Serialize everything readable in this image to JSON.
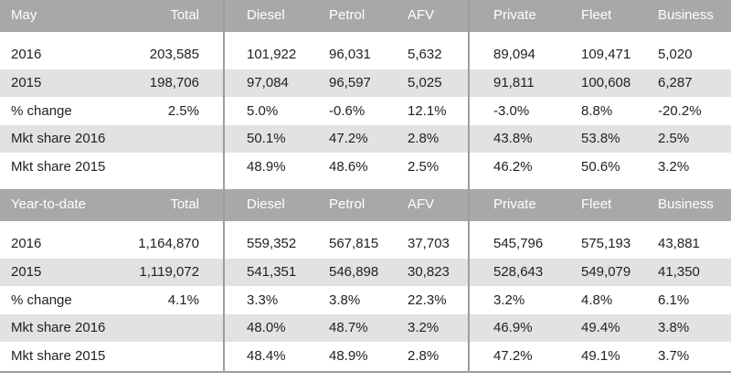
{
  "sections": [
    {
      "header": [
        "May",
        "Total",
        "Diesel",
        "Petrol",
        "AFV",
        "Private",
        "Fleet",
        "Business"
      ],
      "rows": [
        [
          "2016",
          "203,585",
          "101,922",
          "96,031",
          "5,632",
          "89,094",
          "109,471",
          "5,020"
        ],
        [
          "2015",
          "198,706",
          "97,084",
          "96,597",
          "5,025",
          "91,811",
          "100,608",
          "6,287"
        ],
        [
          "% change",
          "2.5%",
          "5.0%",
          "-0.6%",
          "12.1%",
          "-3.0%",
          "8.8%",
          "-20.2%"
        ],
        [
          "Mkt share 2016",
          null,
          "50.1%",
          "47.2%",
          "2.8%",
          "43.8%",
          "53.8%",
          "2.5%"
        ],
        [
          "Mkt share 2015",
          null,
          "48.9%",
          "48.6%",
          "2.5%",
          "46.2%",
          "50.6%",
          "3.2%"
        ]
      ]
    },
    {
      "header": [
        "Year-to-date",
        "Total",
        "Diesel",
        "Petrol",
        "AFV",
        "Private",
        "Fleet",
        "Business"
      ],
      "rows": [
        [
          "2016",
          "1,164,870",
          "559,352",
          "567,815",
          "37,703",
          "545,796",
          "575,193",
          "43,881"
        ],
        [
          "2015",
          "1,119,072",
          "541,351",
          "546,898",
          "30,823",
          "528,643",
          "549,079",
          "41,350"
        ],
        [
          "% change",
          "4.1%",
          "3.3%",
          "3.8%",
          "22.3%",
          "3.2%",
          "4.8%",
          "6.1%"
        ],
        [
          "Mkt share 2016",
          null,
          "48.0%",
          "48.7%",
          "3.2%",
          "46.9%",
          "49.4%",
          "3.8%"
        ],
        [
          "Mkt share 2015",
          null,
          "48.4%",
          "48.9%",
          "2.8%",
          "47.2%",
          "49.1%",
          "3.7%"
        ]
      ]
    }
  ]
}
